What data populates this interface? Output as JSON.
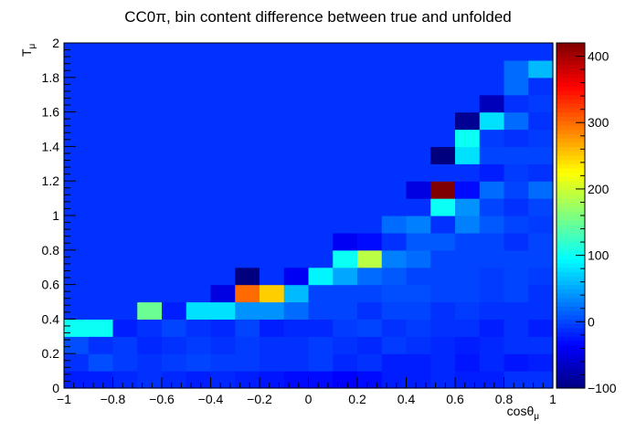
{
  "chart_data": {
    "type": "heatmap",
    "title": "CC0π, bin content difference between true and unfolded",
    "xlabel": "cosθ",
    "xlabel_sub": "μ",
    "ylabel": "T",
    "ylabel_sub": "μ",
    "xlim": [
      -1,
      1
    ],
    "ylim": [
      0,
      2
    ],
    "zlim": [
      -100,
      420
    ],
    "x_ticks": [
      "−1",
      "−0.8",
      "−0.6",
      "−0.4",
      "−0.2",
      "0",
      "0.2",
      "0.4",
      "0.6",
      "0.8",
      "1"
    ],
    "y_ticks": [
      "0",
      "0.2",
      "0.4",
      "0.6",
      "0.8",
      "1",
      "1.2",
      "1.4",
      "1.6",
      "1.8",
      "2"
    ],
    "z_ticks": [
      "−100",
      "0",
      "100",
      "200",
      "300",
      "400"
    ],
    "x_bins": 20,
    "y_bins": 20,
    "values": [
      [
        -20,
        -20,
        -15,
        -10,
        -15,
        -20,
        -15,
        -20,
        -25,
        -30,
        -30,
        -35,
        -30,
        -20,
        -20,
        -15,
        -20,
        -20,
        -10,
        -10
      ],
      [
        -10,
        5,
        -5,
        -10,
        -5,
        0,
        -5,
        -5,
        -10,
        -10,
        -5,
        -15,
        -10,
        -20,
        -20,
        -15,
        -25,
        -15,
        -25,
        -20
      ],
      [
        5,
        -10,
        -5,
        -15,
        -10,
        -5,
        -10,
        -5,
        -10,
        -10,
        -5,
        -10,
        -15,
        -5,
        -10,
        -15,
        -20,
        -15,
        -10,
        -10
      ],
      [
        100,
        100,
        -20,
        -10,
        0,
        -10,
        -15,
        0,
        -20,
        -15,
        -15,
        -5,
        0,
        -10,
        -5,
        -10,
        -10,
        -20,
        -10,
        -20
      ],
      [
        -10,
        -10,
        -10,
        150,
        -20,
        80,
        80,
        40,
        40,
        20,
        0,
        0,
        -10,
        0,
        0,
        -10,
        -5,
        -10,
        -10,
        -10
      ],
      [
        -10,
        -10,
        -10,
        -10,
        -10,
        -10,
        -50,
        300,
        250,
        60,
        0,
        0,
        0,
        5,
        5,
        0,
        0,
        -5,
        0,
        -10
      ],
      [
        -10,
        -10,
        -10,
        -10,
        -10,
        -10,
        -10,
        -100,
        -10,
        -40,
        90,
        50,
        20,
        10,
        0,
        0,
        0,
        -5,
        0,
        -5
      ],
      [
        -10,
        -10,
        -10,
        -10,
        -10,
        -10,
        -10,
        -10,
        -10,
        -10,
        -10,
        100,
        190,
        30,
        20,
        0,
        0,
        0,
        0,
        0
      ],
      [
        -10,
        -10,
        -10,
        -10,
        -10,
        -10,
        -10,
        -10,
        -10,
        -10,
        -10,
        -40,
        -30,
        -10,
        10,
        10,
        0,
        0,
        -10,
        0
      ],
      [
        -10,
        -10,
        -10,
        -10,
        -10,
        -10,
        -10,
        -10,
        -10,
        -10,
        -10,
        -10,
        -10,
        20,
        30,
        -10,
        30,
        10,
        0,
        -5
      ],
      [
        -10,
        -10,
        -10,
        -10,
        -10,
        -10,
        -10,
        -10,
        -10,
        -10,
        -10,
        -10,
        -10,
        -10,
        -10,
        100,
        40,
        0,
        -10,
        0
      ],
      [
        -10,
        -10,
        -10,
        -10,
        -10,
        -10,
        -10,
        -10,
        -10,
        -10,
        -10,
        -10,
        -10,
        -10,
        -50,
        420,
        -30,
        20,
        0,
        20
      ],
      [
        -10,
        -10,
        -10,
        -10,
        -10,
        -10,
        -10,
        -10,
        -10,
        -10,
        -10,
        -10,
        -10,
        -10,
        -10,
        -10,
        -10,
        -20,
        -5,
        -10
      ],
      [
        -10,
        -10,
        -10,
        -10,
        -10,
        -10,
        -10,
        -10,
        -10,
        -10,
        -10,
        -10,
        -10,
        -10,
        -10,
        -100,
        80,
        0,
        0,
        0
      ],
      [
        -10,
        -10,
        -10,
        -10,
        -10,
        -10,
        -10,
        -10,
        -10,
        -10,
        -10,
        -10,
        -10,
        -10,
        -10,
        -10,
        100,
        -5,
        -10,
        -5
      ],
      [
        -10,
        -10,
        -10,
        -10,
        -10,
        -10,
        -10,
        -10,
        -10,
        -10,
        -10,
        -10,
        -10,
        -10,
        -10,
        -10,
        -90,
        80,
        20,
        -10
      ],
      [
        -10,
        -10,
        -10,
        -10,
        -10,
        -10,
        -10,
        -10,
        -10,
        -10,
        -10,
        -10,
        -10,
        -10,
        -10,
        -10,
        -10,
        -70,
        -10,
        -5
      ],
      [
        -10,
        -10,
        -10,
        -10,
        -10,
        -10,
        -10,
        -10,
        -10,
        -10,
        -10,
        -10,
        -10,
        -10,
        -10,
        -10,
        -10,
        -10,
        20,
        -10
      ],
      [
        -10,
        -10,
        -10,
        -10,
        -10,
        -10,
        -10,
        -10,
        -10,
        -10,
        -10,
        -10,
        -10,
        -10,
        -10,
        -10,
        -10,
        -10,
        20,
        60
      ],
      [
        -10,
        -10,
        -10,
        -10,
        -10,
        -10,
        -10,
        -10,
        -10,
        -10,
        -10,
        -10,
        -10,
        -10,
        -10,
        -10,
        -10,
        -10,
        -10,
        -10
      ]
    ],
    "colorscale": [
      "#00007f",
      "#0000ff",
      "#007fff",
      "#00ffff",
      "#7fff7f",
      "#ffff00",
      "#ff7f00",
      "#ff0000",
      "#7f0000"
    ],
    "grid": false,
    "legend": "colorbar-right"
  }
}
